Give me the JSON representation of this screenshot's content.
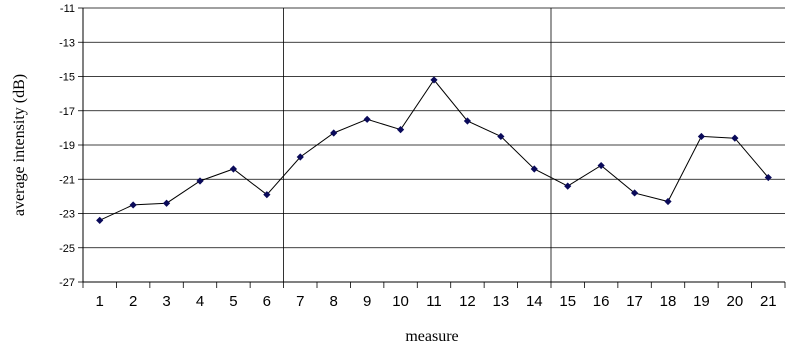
{
  "chart_data": {
    "type": "line",
    "title": "",
    "xlabel": "measure",
    "ylabel": "average intensity (dB)",
    "categories": [
      "1",
      "2",
      "3",
      "4",
      "5",
      "6",
      "7",
      "8",
      "9",
      "10",
      "11",
      "12",
      "13",
      "14",
      "15",
      "16",
      "17",
      "18",
      "19",
      "20",
      "21"
    ],
    "series": [
      {
        "values": [
          -23.4,
          -22.5,
          -22.4,
          -21.1,
          -20.4,
          -21.9,
          -19.7,
          -18.3,
          -17.5,
          -18.1,
          -15.2,
          -17.6,
          -18.5,
          -20.4,
          -21.4,
          -20.2,
          -21.8,
          -22.3,
          -18.5,
          -18.6,
          -20.9
        ]
      }
    ],
    "ylim": [
      -27,
      -11
    ],
    "yticks": [
      "-11",
      "-13",
      "-15",
      "-17",
      "-19",
      "-21",
      "-23",
      "-25",
      "-27"
    ],
    "grid": "horizontal",
    "section_dividers_after": [
      6,
      14
    ],
    "legend": "none",
    "colors": {
      "line": "#000000",
      "marker": "#0a0a5a",
      "grid": "#000000"
    }
  }
}
